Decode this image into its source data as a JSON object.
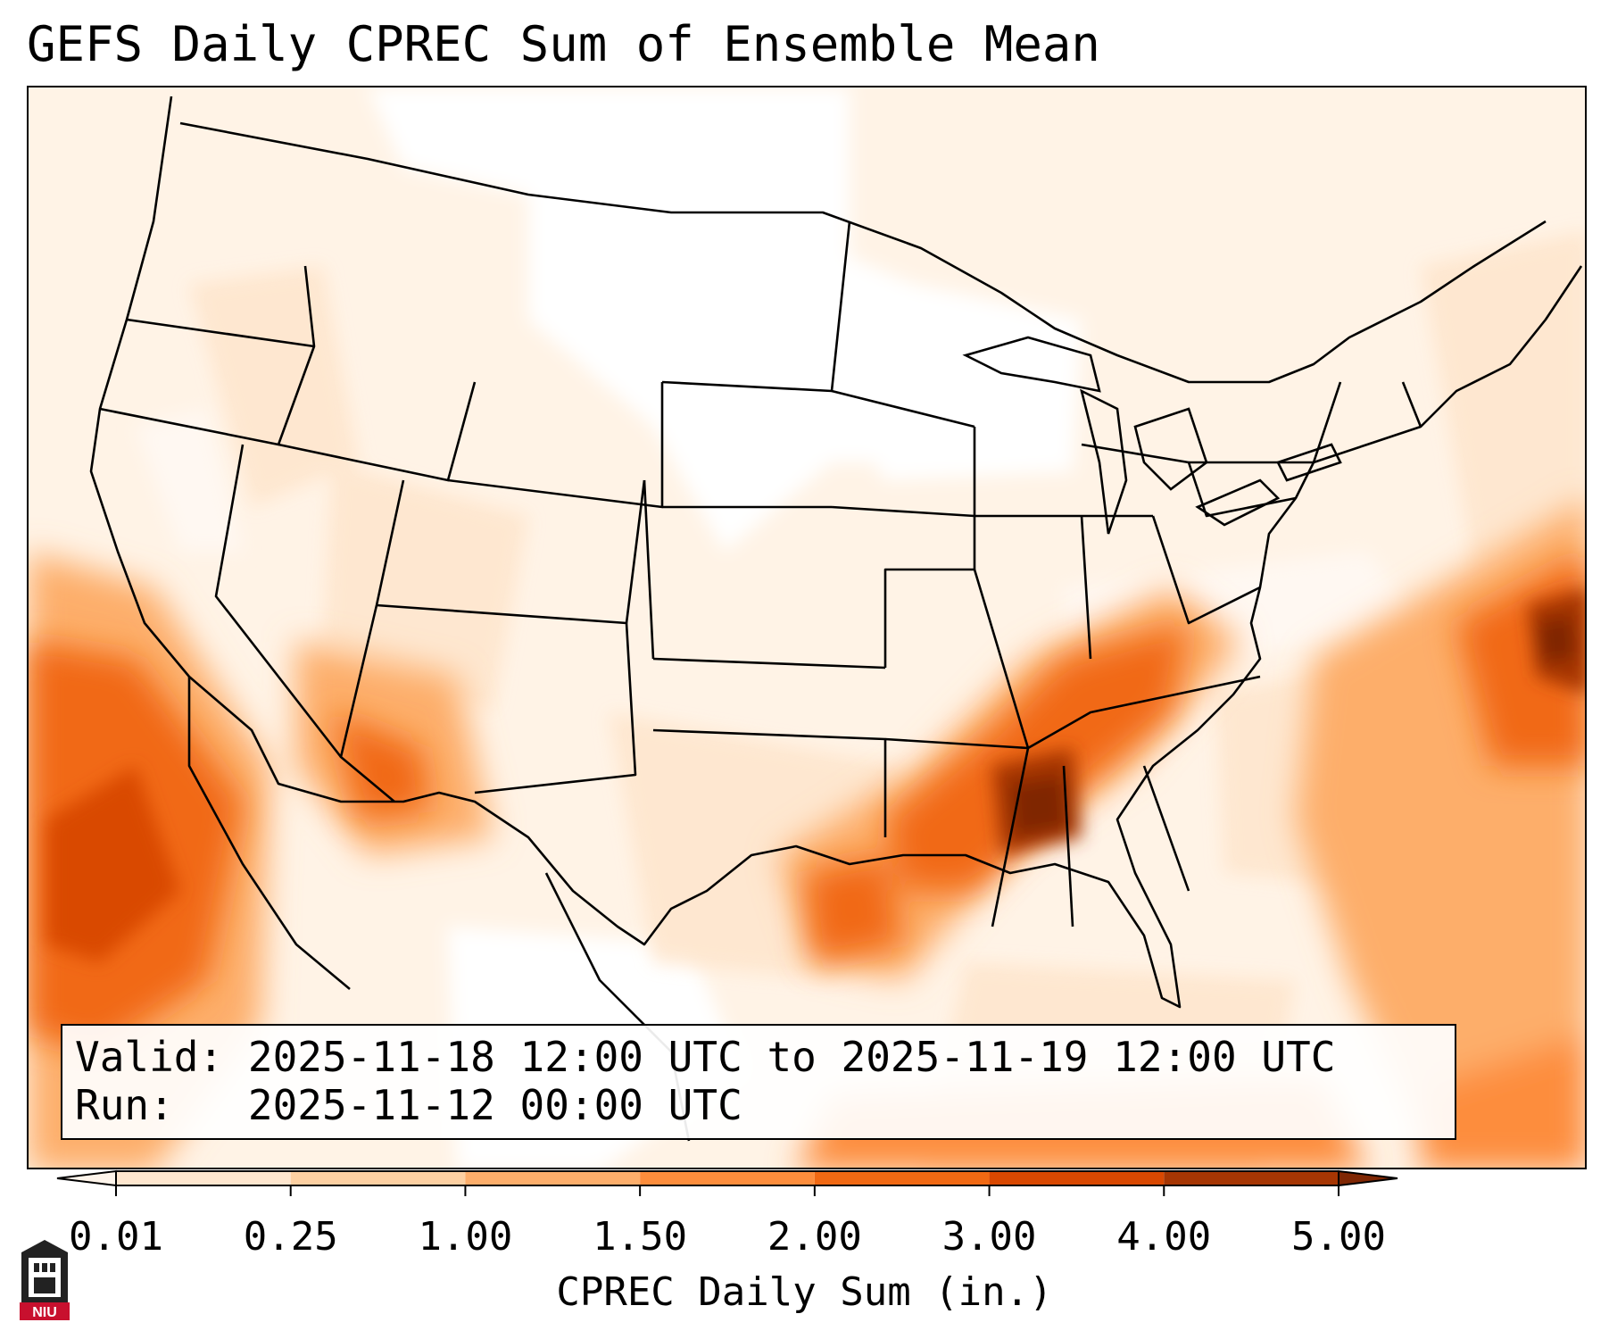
{
  "title": "GEFS Daily CPREC Sum of Ensemble Mean",
  "info": {
    "valid_label": "Valid:",
    "valid_value": "2025-11-18 12:00 UTC to 2025-11-19 12:00 UTC",
    "run_label": "Run:",
    "run_value": "2025-11-12 00:00 UTC"
  },
  "colorbar": {
    "label": "CPREC Daily Sum (in.)",
    "ticks": [
      "0.01",
      "0.25",
      "1.00",
      "1.50",
      "2.00",
      "3.00",
      "4.00",
      "5.00"
    ],
    "colors": [
      "#fff5eb",
      "#fee6ce",
      "#fdd0a2",
      "#fdae6b",
      "#fd8d3c",
      "#f16913",
      "#d94801",
      "#a63603",
      "#7f2704"
    ],
    "extend": "both"
  },
  "logo": {
    "text": "NIU",
    "icon": "university-tower-icon",
    "accent": "#c8102e"
  },
  "map": {
    "domain": "CONUS",
    "base_color": "#fff3e6",
    "heavy_color": "#7f2704"
  }
}
